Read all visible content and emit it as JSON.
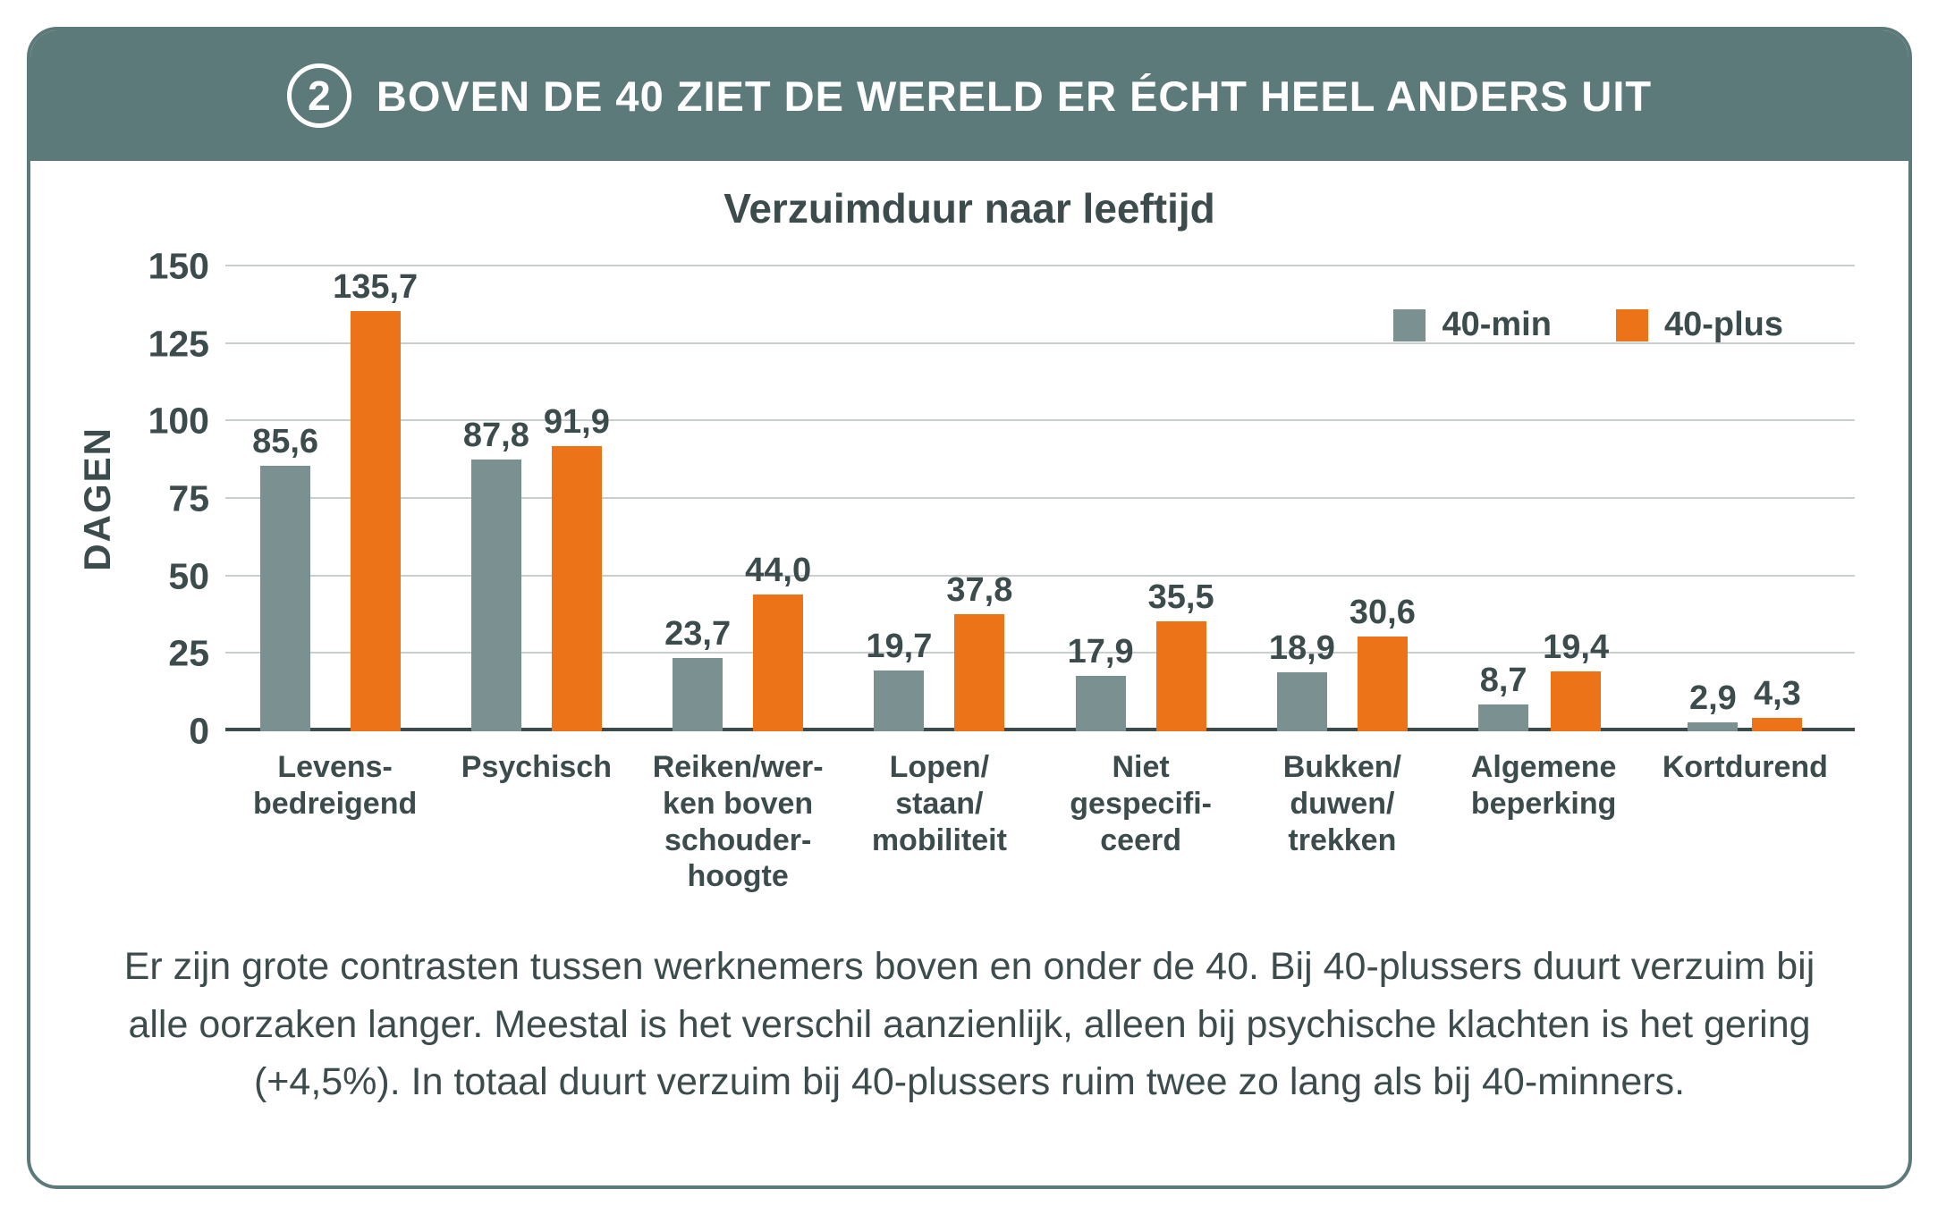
{
  "header": {
    "badge": "2",
    "title": "BOVEN DE 40 ZIET DE WERELD ER ÉCHT HEEL ANDERS UIT"
  },
  "chart_data": {
    "type": "bar",
    "title": "Verzuimduur naar leeftijd",
    "xlabel": "",
    "ylabel": "DAGEN",
    "ylim": [
      0,
      150
    ],
    "ytick_step": 25,
    "grid": true,
    "legend_position": "top-right",
    "categories": [
      {
        "label": "Levensbedreigend",
        "lines": [
          "Levens-",
          "bedreigend"
        ]
      },
      {
        "label": "Psychisch",
        "lines": [
          "Psychisch"
        ]
      },
      {
        "label": "Reiken/werken boven schouderhoogte",
        "lines": [
          "Reiken/wer-",
          "ken boven",
          "schouder-",
          "hoogte"
        ]
      },
      {
        "label": "Lopen/staan/mobiliteit",
        "lines": [
          "Lopen/",
          "staan/",
          "mobiliteit"
        ]
      },
      {
        "label": "Niet gespecificeerd",
        "lines": [
          "Niet",
          "gespecifi-",
          "ceerd"
        ]
      },
      {
        "label": "Bukken/duwen/trekken",
        "lines": [
          "Bukken/",
          "duwen/",
          "trekken"
        ]
      },
      {
        "label": "Algemene beperking",
        "lines": [
          "Algemene",
          "beperking"
        ]
      },
      {
        "label": "Kortdurend",
        "lines": [
          "Kortdurend"
        ]
      }
    ],
    "series": [
      {
        "name": "40-min",
        "color": "#7B9090",
        "values": [
          85.6,
          87.8,
          23.7,
          19.7,
          17.9,
          18.9,
          8.7,
          2.9
        ],
        "labels": [
          "85,6",
          "87,8",
          "23,7",
          "19,7",
          "17,9",
          "18,9",
          "8,7",
          "2,9"
        ]
      },
      {
        "name": "40-plus",
        "color": "#EC7318",
        "values": [
          135.7,
          91.9,
          44.0,
          37.8,
          35.5,
          30.6,
          19.4,
          4.3
        ],
        "labels": [
          "135,7",
          "91,9",
          "44,0",
          "37,8",
          "35,5",
          "30,6",
          "19,4",
          "4,3"
        ]
      }
    ]
  },
  "footer": {
    "text": "Er zijn grote contrasten tussen werknemers boven en onder de 40. Bij 40-plussers duurt verzuim bij alle oorzaken langer. Meestal is het verschil aanzienlijk, alleen bij psychische klachten is het gering (+4,5%). In totaal duurt verzuim bij 40-plussers ruim twee zo lang als bij 40-minners."
  },
  "colors": {
    "header_bg": "#5C7A79",
    "text": "#3C4B4C",
    "gridline": "#C9CFCF",
    "axis_zero_line": "#3C4B4C"
  }
}
